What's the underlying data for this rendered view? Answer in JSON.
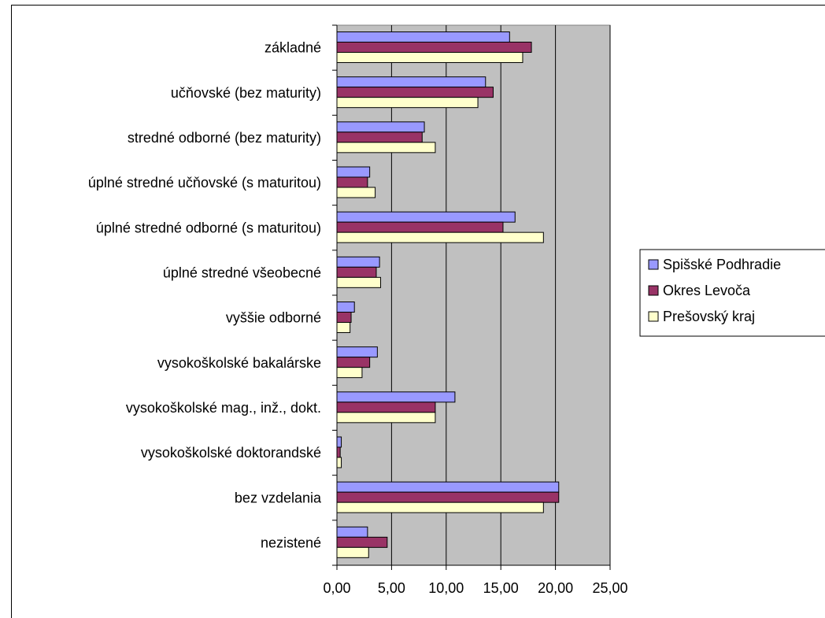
{
  "chart_data": {
    "type": "bar",
    "orientation": "horizontal",
    "categories": [
      "základné",
      "učňovské (bez maturity)",
      "stredné odborné (bez maturity)",
      "úplné stredné učňovské (s maturitou)",
      "úplné stredné odborné (s maturitou)",
      "úplné stredné všeobecné",
      "vyššie odborné",
      "vysokoškolské bakalárske",
      "vysokoškolské mag., inž., dokt.",
      "vysokoškolské doktorandské",
      "bez vzdelania",
      "nezistené"
    ],
    "series": [
      {
        "name": "Spišské Podhradie",
        "color": "#9999ff",
        "values": [
          15.8,
          13.6,
          8.0,
          3.0,
          16.3,
          3.9,
          1.6,
          3.7,
          10.8,
          0.4,
          20.3,
          2.8
        ]
      },
      {
        "name": "Okres Levoča",
        "color": "#993366",
        "values": [
          17.8,
          14.3,
          7.8,
          2.8,
          15.2,
          3.6,
          1.3,
          3.0,
          9.0,
          0.3,
          20.3,
          4.6
        ]
      },
      {
        "name": "Prešovský kraj",
        "color": "#ffffcc",
        "values": [
          17.0,
          12.9,
          9.0,
          3.5,
          18.9,
          4.0,
          1.2,
          2.3,
          9.0,
          0.4,
          18.9,
          2.9
        ]
      }
    ],
    "x_ticks": [
      "0,00",
      "5,00",
      "10,00",
      "15,00",
      "20,00",
      "25,00"
    ],
    "xlim": [
      0,
      25
    ],
    "plot_background": "#c0c0c0",
    "grid": true,
    "legend_position": "right",
    "title": "",
    "xlabel": "",
    "ylabel": ""
  }
}
